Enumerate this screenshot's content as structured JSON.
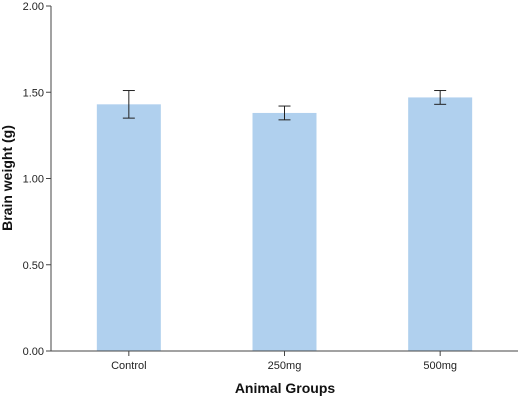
{
  "chart_data": {
    "type": "bar",
    "title": "",
    "xlabel": "Animal Groups",
    "ylabel": "Brain weight (g)",
    "categories": [
      "Control",
      "250mg",
      "500mg"
    ],
    "values": [
      1.43,
      1.38,
      1.47
    ],
    "error_bars": [
      {
        "low": 1.35,
        "high": 1.51
      },
      {
        "low": 1.34,
        "high": 1.42
      },
      {
        "low": 1.43,
        "high": 1.51
      }
    ],
    "ylim": [
      0,
      2
    ],
    "yticks": [
      "0.00",
      "0.50",
      "1.00",
      "1.50",
      "2.00"
    ],
    "grid": false,
    "legend": "none",
    "colors": {
      "bar": "#b0d0ee",
      "error_bar": "#222222",
      "axis": "#444444"
    }
  }
}
